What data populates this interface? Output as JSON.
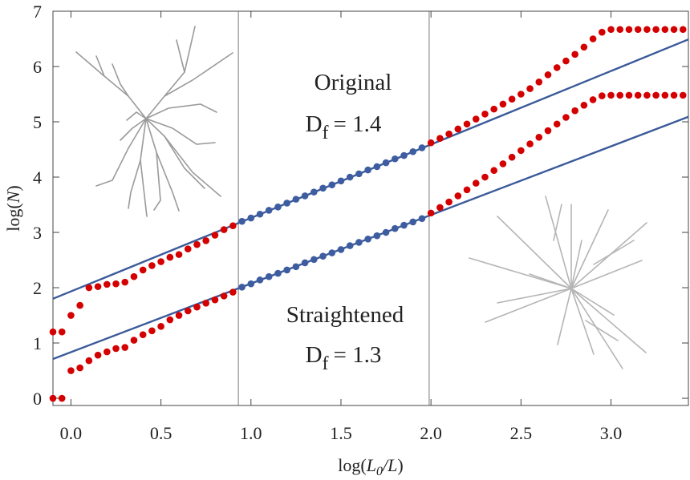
{
  "chart_data": {
    "type": "scatter",
    "xlim": [
      -0.1,
      3.43
    ],
    "ylim": [
      -0.13,
      7
    ],
    "xticks": [
      {
        "value": 0,
        "label": "0.0"
      },
      0.5,
      {
        "value": 1,
        "label": "1.0"
      },
      1.5,
      {
        "value": 2,
        "label": "2.0"
      },
      2.5,
      {
        "value": 3,
        "label": "3.0"
      }
    ],
    "yticks": [
      0,
      1,
      2,
      3,
      4,
      5,
      6,
      7
    ],
    "xlabel": [
      "log(",
      "L",
      "0",
      "/",
      "L",
      ")"
    ],
    "ylabel": [
      "log(",
      "N",
      ")"
    ],
    "vlines": [
      0.93,
      1.99
    ],
    "x": [
      -0.1,
      -0.05,
      0,
      0.05,
      0.1,
      0.15,
      0.2,
      0.25,
      0.3,
      0.35,
      0.4,
      0.45,
      0.5,
      0.55,
      0.6,
      0.65,
      0.7,
      0.75,
      0.8,
      0.85,
      0.9,
      0.95,
      1.0,
      1.05,
      1.1,
      1.15,
      1.2,
      1.25,
      1.3,
      1.35,
      1.4,
      1.45,
      1.5,
      1.55,
      1.6,
      1.65,
      1.7,
      1.75,
      1.8,
      1.85,
      1.9,
      1.95,
      2.0,
      2.05,
      2.1,
      2.15,
      2.2,
      2.25,
      2.3,
      2.35,
      2.4,
      2.45,
      2.5,
      2.55,
      2.6,
      2.65,
      2.7,
      2.75,
      2.8,
      2.85,
      2.9,
      2.95,
      3.0,
      3.05,
      3.1,
      3.15,
      3.2,
      3.25,
      3.3,
      3.35,
      3.4
    ],
    "series": [
      {
        "color": "#d40000",
        "fit_color": "#3e5da1",
        "values": [
          1.2,
          1.2,
          1.5,
          1.68,
          2.0,
          2.02,
          2.06,
          2.07,
          2.1,
          2.2,
          2.32,
          2.4,
          2.47,
          2.55,
          2.6,
          2.7,
          2.78,
          2.85,
          2.95,
          3.05,
          3.12,
          3.2,
          3.26,
          3.33,
          3.4,
          3.46,
          3.53,
          3.6,
          3.66,
          3.73,
          3.8,
          3.86,
          3.93,
          4.0,
          4.06,
          4.13,
          4.19,
          4.26,
          4.33,
          4.39,
          4.46,
          4.53,
          4.62,
          4.7,
          4.78,
          4.87,
          4.96,
          5.05,
          5.14,
          5.23,
          5.32,
          5.41,
          5.5,
          5.6,
          5.72,
          5.85,
          5.98,
          6.1,
          6.22,
          6.35,
          6.5,
          6.62,
          6.67,
          6.67,
          6.67,
          6.67,
          6.67,
          6.67,
          6.67,
          6.67,
          6.67
        ]
      },
      {
        "color": "#d40000",
        "fit_color": "#3e5da1",
        "values": [
          0,
          0,
          0.5,
          0.55,
          0.68,
          0.78,
          0.84,
          0.9,
          0.92,
          1.05,
          1.15,
          1.22,
          1.3,
          1.42,
          1.5,
          1.58,
          1.65,
          1.72,
          1.78,
          1.85,
          1.92,
          2.01,
          2.07,
          2.14,
          2.2,
          2.26,
          2.32,
          2.38,
          2.45,
          2.51,
          2.57,
          2.63,
          2.69,
          2.76,
          2.82,
          2.88,
          2.94,
          3.0,
          3.07,
          3.13,
          3.19,
          3.25,
          3.35,
          3.45,
          3.55,
          3.66,
          3.77,
          3.89,
          4.0,
          4.12,
          4.24,
          4.36,
          4.48,
          4.6,
          4.72,
          4.84,
          4.96,
          5.08,
          5.2,
          5.3,
          5.4,
          5.47,
          5.48,
          5.48,
          5.48,
          5.48,
          5.48,
          5.48,
          5.48,
          5.48,
          5.48
        ]
      }
    ],
    "fits": [
      {
        "color": "#3b5a9a",
        "x": [
          -0.1,
          3.43
        ],
        "values": [
          1.8,
          6.49
        ]
      },
      {
        "color": "#3b5a9a",
        "x": [
          -0.1,
          3.43
        ],
        "values": [
          0.71,
          5.09
        ]
      }
    ],
    "annotations": [
      {
        "title": "Original",
        "symbol": "D",
        "subscript": "f",
        "text": "= 1.4"
      },
      {
        "title": "Straightened",
        "symbol": "D",
        "subscript": "f",
        "text": "= 1.3"
      }
    ]
  }
}
